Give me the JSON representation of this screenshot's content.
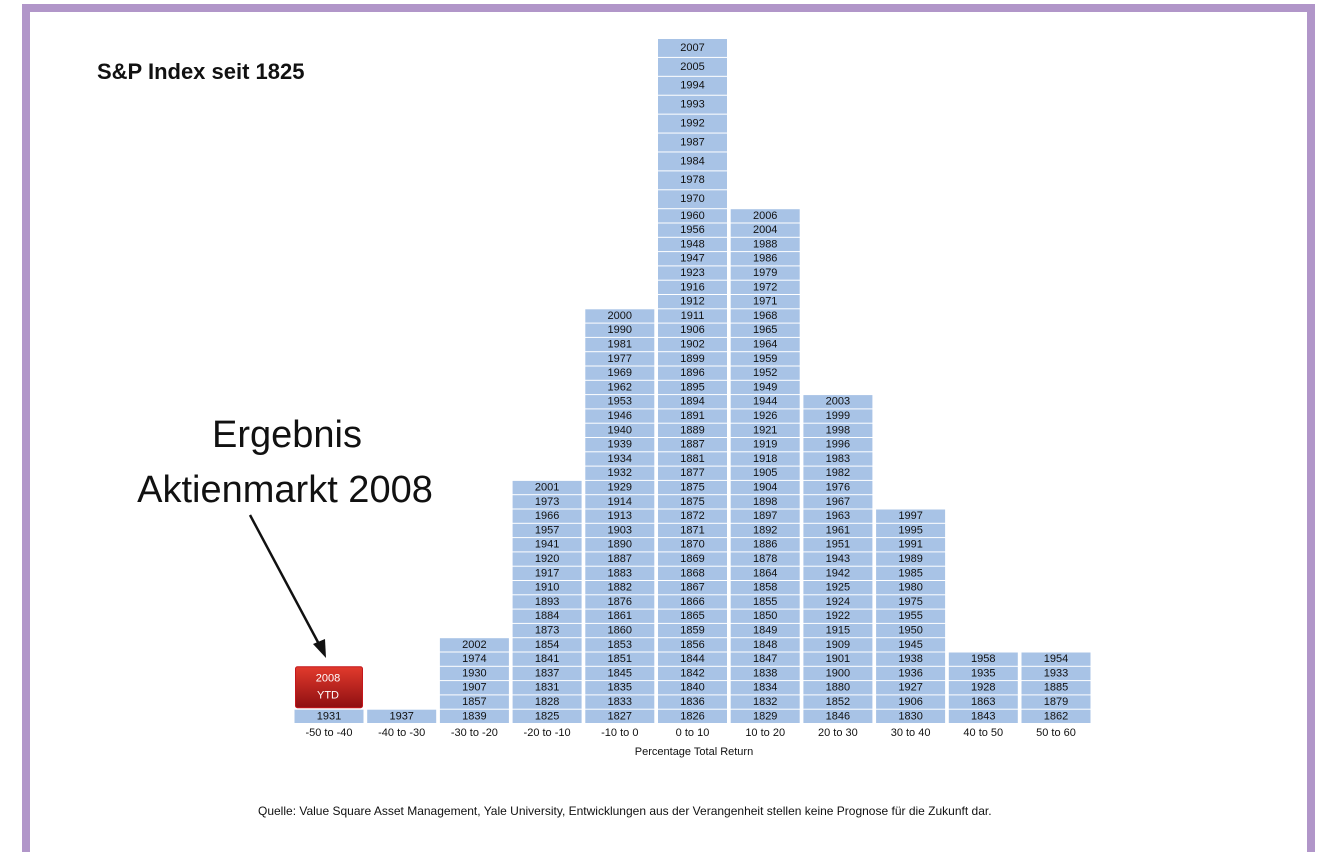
{
  "chart_data": {
    "type": "year-stack",
    "title": "S&P Index seit 1825",
    "xlabel": "Percentage Total Return",
    "source": "Quelle: Value Square Asset Management, Yale University, Entwicklungen aus der Verangenheit stellen keine Prognose für die Zukunft dar.",
    "annotation": [
      "Ergebnis",
      "Aktienmarkt 2008"
    ],
    "highlight": [
      "2008",
      "YTD"
    ],
    "color": "#a8c3e6",
    "highlight_color": "#c4161c",
    "categories": [
      "-50 to -40",
      "-40 to -30",
      "-30 to -20",
      "-20 to -10",
      "-10 to 0",
      "0 to 10",
      "10 to 20",
      "20 to 30",
      "30 to 40",
      "40 to 50",
      "50 to 60"
    ],
    "columns": [
      [
        "1931"
      ],
      [
        "1937"
      ],
      [
        "1839",
        "1857",
        "1907",
        "1930",
        "1974",
        "2002"
      ],
      [
        "1825",
        "1828",
        "1831",
        "1837",
        "1841",
        "1854",
        "1873",
        "1884",
        "1893",
        "1910",
        "1917",
        "1920",
        "1941",
        "1957",
        "1966",
        "1973",
        "2001"
      ],
      [
        "1827",
        "1833",
        "1835",
        "1845",
        "1851",
        "1853",
        "1860",
        "1861",
        "1876",
        "1882",
        "1883",
        "1887",
        "1890",
        "1903",
        "1913",
        "1914",
        "1929",
        "1932",
        "1934",
        "1939",
        "1940",
        "1946",
        "1953",
        "1962",
        "1969",
        "1977",
        "1981",
        "1990",
        "2000"
      ],
      [
        "1826",
        "1836",
        "1840",
        "1842",
        "1844",
        "1856",
        "1859",
        "1865",
        "1866",
        "1867",
        "1868",
        "1869",
        "1870",
        "1871",
        "1872",
        "1875",
        "1875",
        "1877",
        "1881",
        "1887",
        "1889",
        "1891",
        "1894",
        "1895",
        "1896",
        "1899",
        "1902",
        "1906",
        "1911",
        "1912",
        "1916",
        "1923",
        "1947",
        "1948",
        "1956",
        "1960",
        "1970",
        "1978",
        "1984",
        "1987",
        "1992",
        "1993",
        "1994",
        "2005",
        "2007"
      ],
      [
        "1829",
        "1832",
        "1834",
        "1838",
        "1847",
        "1848",
        "1849",
        "1850",
        "1855",
        "1858",
        "1864",
        "1878",
        "1886",
        "1892",
        "1897",
        "1898",
        "1904",
        "1905",
        "1918",
        "1919",
        "1921",
        "1926",
        "1944",
        "1949",
        "1952",
        "1959",
        "1964",
        "1965",
        "1968",
        "1971",
        "1972",
        "1979",
        "1986",
        "1988",
        "2004",
        "2006"
      ],
      [
        "1846",
        "1852",
        "1880",
        "1900",
        "1901",
        "1909",
        "1915",
        "1922",
        "1924",
        "1925",
        "1942",
        "1943",
        "1951",
        "1961",
        "1963",
        "1967",
        "1976",
        "1982",
        "1983",
        "1996",
        "1998",
        "1999",
        "2003"
      ],
      [
        "1830",
        "1906",
        "1927",
        "1936",
        "1938",
        "1945",
        "1950",
        "1955",
        "1975",
        "1980",
        "1985",
        "1989",
        "1991",
        "1995",
        "1997"
      ],
      [
        "1843",
        "1863",
        "1928",
        "1935",
        "1958"
      ],
      [
        "1862",
        "1879",
        "1885",
        "1933",
        "1954"
      ]
    ]
  }
}
